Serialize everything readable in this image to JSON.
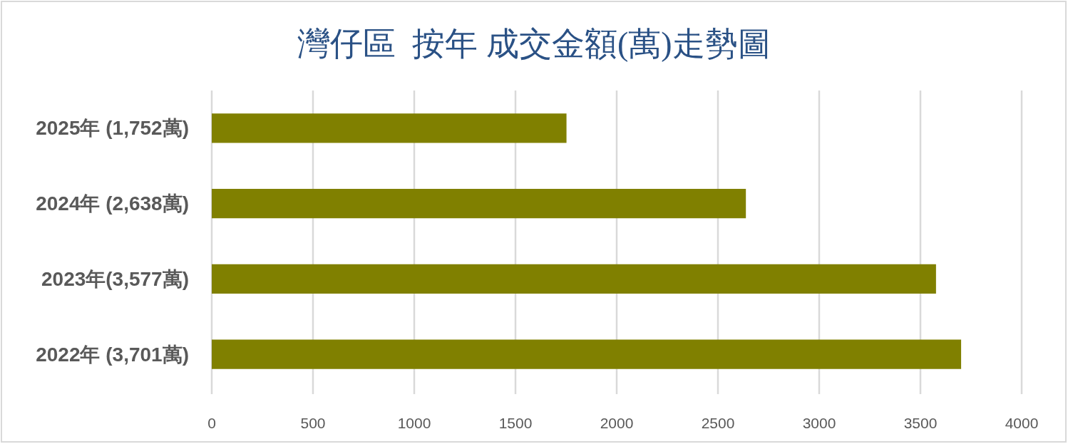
{
  "chart_data": {
    "type": "bar",
    "orientation": "horizontal",
    "title": "灣仔區  按年 成交金額(萬)走勢圖",
    "categories": [
      "2025年 (1,752萬)",
      "2024年 (2,638萬)",
      "2023年(3,577萬)",
      "2022年 (3,701萬)"
    ],
    "values": [
      1752,
      2638,
      3577,
      3701
    ],
    "color": "#808000",
    "xlim": [
      0,
      4000
    ],
    "xticks": [
      0,
      500,
      1000,
      1500,
      2000,
      2500,
      3000,
      3500,
      4000
    ],
    "grid": "x"
  }
}
